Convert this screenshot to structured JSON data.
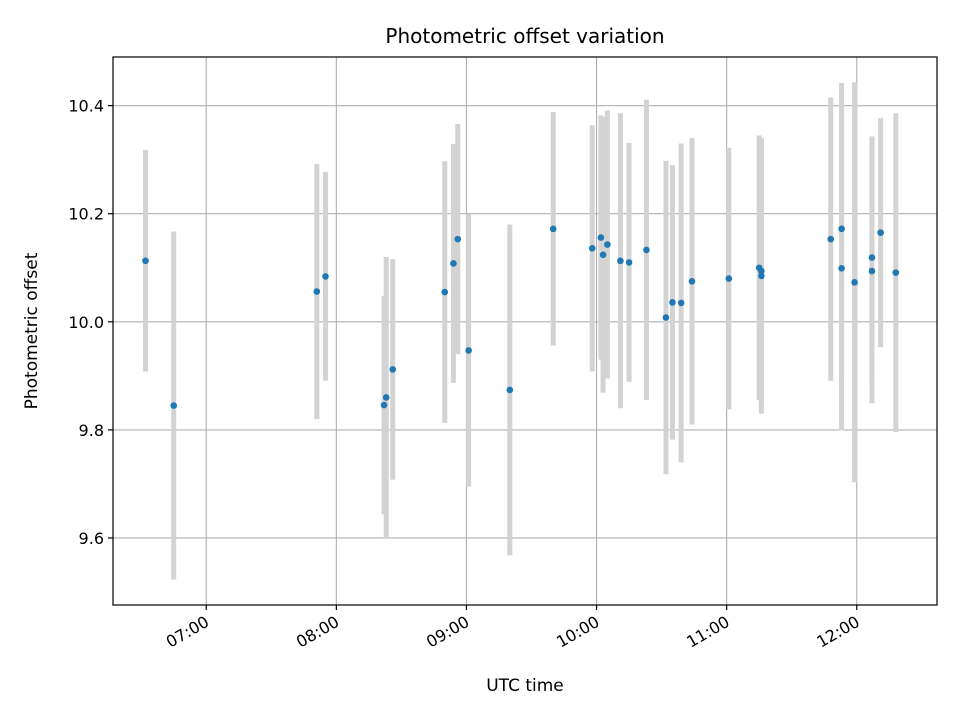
{
  "chart_data": {
    "type": "scatter",
    "title": "Photometric offset variation",
    "xlabel": "UTC time",
    "ylabel": "Photometric offset",
    "x_tick_labels": [
      "07:00",
      "08:00",
      "09:00",
      "10:00",
      "11:00",
      "12:00"
    ],
    "x_tick_values": [
      "07:00",
      "08:00",
      "09:00",
      "10:00",
      "11:00",
      "12:00"
    ],
    "y_ticks": [
      9.6,
      9.8,
      10.0,
      10.2,
      10.4
    ],
    "y_tick_labels": [
      "9.6",
      "9.8",
      "10.0",
      "10.2",
      "10.4"
    ],
    "xlim": [
      "06:17",
      "12:37"
    ],
    "ylim": [
      9.476,
      10.49
    ],
    "grid": true,
    "colors": {
      "point": "#1f77b4",
      "errorbar": "#d3d3d3",
      "grid": "#b0b0b0"
    },
    "points": [
      {
        "x": "06:32",
        "y": 10.113,
        "yerr": 0.205
      },
      {
        "x": "06:45",
        "y": 9.845,
        "yerr": 0.322
      },
      {
        "x": "07:51",
        "y": 10.056,
        "yerr": 0.236
      },
      {
        "x": "07:55",
        "y": 10.084,
        "yerr": 0.193
      },
      {
        "x": "08:22",
        "y": 9.846,
        "yerr": 0.202
      },
      {
        "x": "08:23",
        "y": 9.86,
        "yerr": 0.26
      },
      {
        "x": "08:26",
        "y": 9.912,
        "yerr": 0.204
      },
      {
        "x": "08:50",
        "y": 10.055,
        "yerr": 0.242
      },
      {
        "x": "08:54",
        "y": 10.108,
        "yerr": 0.221
      },
      {
        "x": "08:56",
        "y": 10.153,
        "yerr": 0.213
      },
      {
        "x": "09:01",
        "y": 9.947,
        "yerr": 0.252
      },
      {
        "x": "09:20",
        "y": 9.874,
        "yerr": 0.306
      },
      {
        "x": "09:40",
        "y": 10.172,
        "yerr": 0.216
      },
      {
        "x": "09:58",
        "y": 10.136,
        "yerr": 0.228
      },
      {
        "x": "10:02",
        "y": 10.156,
        "yerr": 0.226
      },
      {
        "x": "10:03",
        "y": 10.124,
        "yerr": 0.255
      },
      {
        "x": "10:05",
        "y": 10.143,
        "yerr": 0.248
      },
      {
        "x": "10:11",
        "y": 10.113,
        "yerr": 0.273
      },
      {
        "x": "10:15",
        "y": 10.11,
        "yerr": 0.221
      },
      {
        "x": "10:23",
        "y": 10.133,
        "yerr": 0.278
      },
      {
        "x": "10:32",
        "y": 10.008,
        "yerr": 0.29
      },
      {
        "x": "10:35",
        "y": 10.036,
        "yerr": 0.254
      },
      {
        "x": "10:39",
        "y": 10.035,
        "yerr": 0.295
      },
      {
        "x": "10:44",
        "y": 10.075,
        "yerr": 0.265
      },
      {
        "x": "11:01",
        "y": 10.08,
        "yerr": 0.242
      },
      {
        "x": "11:15",
        "y": 10.1,
        "yerr": 0.245
      },
      {
        "x": "11:16",
        "y": 10.085,
        "yerr": 0.255
      },
      {
        "x": "11:16",
        "y": 10.094,
        "yerr": 0.245
      },
      {
        "x": "11:48",
        "y": 10.153,
        "yerr": 0.262
      },
      {
        "x": "11:53",
        "y": 10.172,
        "yerr": 0.27
      },
      {
        "x": "11:53",
        "y": 10.099,
        "yerr": 0.3
      },
      {
        "x": "11:59",
        "y": 10.073,
        "yerr": 0.37
      },
      {
        "x": "12:07",
        "y": 10.094,
        "yerr": 0.245
      },
      {
        "x": "12:07",
        "y": 10.119,
        "yerr": 0.224
      },
      {
        "x": "12:11",
        "y": 10.165,
        "yerr": 0.212
      },
      {
        "x": "12:18",
        "y": 10.091,
        "yerr": 0.295
      }
    ]
  }
}
